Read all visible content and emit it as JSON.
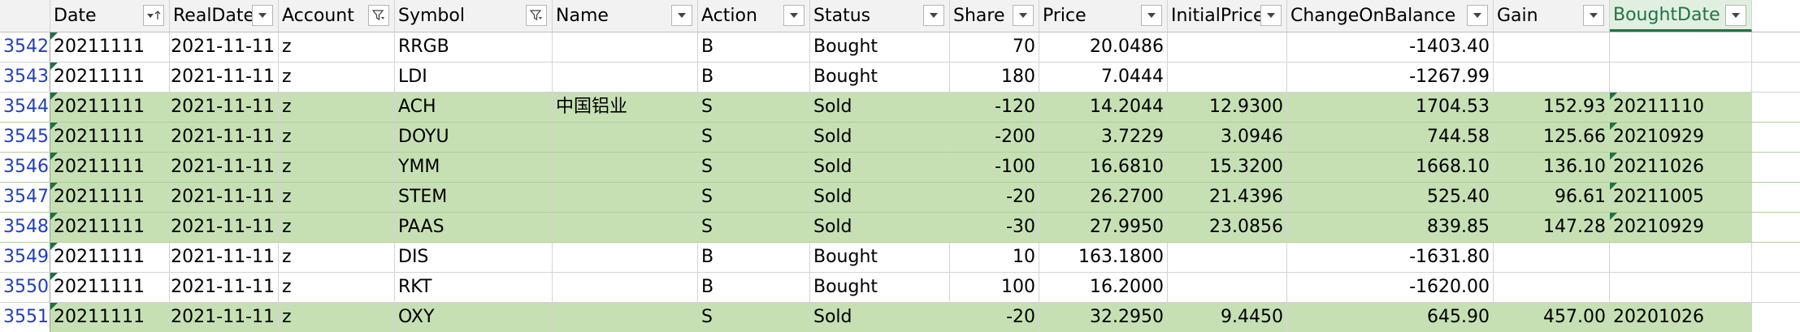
{
  "columns": [
    {
      "key": "rownum",
      "label": "",
      "width": 62,
      "filter": "none"
    },
    {
      "key": "date",
      "label": "Date",
      "width": 147,
      "filter": "sorted-asc"
    },
    {
      "key": "real_date",
      "label": "RealDate",
      "width": 134,
      "filter": "dropdown"
    },
    {
      "key": "account",
      "label": "Account",
      "width": 143,
      "filter": "filtered"
    },
    {
      "key": "symbol",
      "label": "Symbol",
      "width": 194,
      "filter": "filtered"
    },
    {
      "key": "name",
      "label": "Name",
      "width": 179,
      "filter": "dropdown"
    },
    {
      "key": "action",
      "label": "Action",
      "width": 138,
      "filter": "dropdown"
    },
    {
      "key": "status",
      "label": "Status",
      "width": 172,
      "filter": "dropdown"
    },
    {
      "key": "share",
      "label": "Share",
      "width": 110,
      "filter": "dropdown"
    },
    {
      "key": "price",
      "label": "Price",
      "width": 158,
      "filter": "dropdown"
    },
    {
      "key": "initial_price",
      "label": "InitialPrice",
      "width": 147,
      "filter": "dropdown"
    },
    {
      "key": "change_on_balance",
      "label": "ChangeOnBalance",
      "width": 254,
      "filter": "dropdown"
    },
    {
      "key": "gain",
      "label": "Gain",
      "width": 143,
      "filter": "dropdown"
    },
    {
      "key": "bought_date",
      "label": "BoughtDate",
      "width": 175,
      "filter": "dropdown"
    }
  ],
  "colors": {
    "sold_fill": "#c6e0b4",
    "row_number": "#1f3fbf",
    "marker": "#1e7145",
    "active_header": "#217346"
  },
  "rows": [
    {
      "rownum": "3542",
      "date": "20211111",
      "real_date": "2021-11-11",
      "account": "z",
      "symbol": "RRGB",
      "name": "",
      "action": "B",
      "status": "Bought",
      "share": "70",
      "price": "20.0486",
      "initial_price": "",
      "change_on_balance": "-1403.40",
      "gain": "",
      "bought_date": "",
      "highlight": false,
      "bought_marker": false
    },
    {
      "rownum": "3543",
      "date": "20211111",
      "real_date": "2021-11-11",
      "account": "z",
      "symbol": "LDI",
      "name": "",
      "action": "B",
      "status": "Bought",
      "share": "180",
      "price": "7.0444",
      "initial_price": "",
      "change_on_balance": "-1267.99",
      "gain": "",
      "bought_date": "",
      "highlight": false,
      "bought_marker": false
    },
    {
      "rownum": "3544",
      "date": "20211111",
      "real_date": "2021-11-11",
      "account": "z",
      "symbol": "ACH",
      "name": "中国铝业",
      "action": "S",
      "status": "Sold",
      "share": "-120",
      "price": "14.2044",
      "initial_price": "12.9300",
      "change_on_balance": "1704.53",
      "gain": "152.93",
      "bought_date": "20211110",
      "highlight": true,
      "bought_marker": true
    },
    {
      "rownum": "3545",
      "date": "20211111",
      "real_date": "2021-11-11",
      "account": "z",
      "symbol": "DOYU",
      "name": "",
      "action": "S",
      "status": "Sold",
      "share": "-200",
      "price": "3.7229",
      "initial_price": "3.0946",
      "change_on_balance": "744.58",
      "gain": "125.66",
      "bought_date": "20210929",
      "highlight": true,
      "bought_marker": true
    },
    {
      "rownum": "3546",
      "date": "20211111",
      "real_date": "2021-11-11",
      "account": "z",
      "symbol": "YMM",
      "name": "",
      "action": "S",
      "status": "Sold",
      "share": "-100",
      "price": "16.6810",
      "initial_price": "15.3200",
      "change_on_balance": "1668.10",
      "gain": "136.10",
      "bought_date": "20211026",
      "highlight": true,
      "bought_marker": true
    },
    {
      "rownum": "3547",
      "date": "20211111",
      "real_date": "2021-11-11",
      "account": "z",
      "symbol": "STEM",
      "name": "",
      "action": "S",
      "status": "Sold",
      "share": "-20",
      "price": "26.2700",
      "initial_price": "21.4396",
      "change_on_balance": "525.40",
      "gain": "96.61",
      "bought_date": "20211005",
      "highlight": true,
      "bought_marker": true
    },
    {
      "rownum": "3548",
      "date": "20211111",
      "real_date": "2021-11-11",
      "account": "z",
      "symbol": "PAAS",
      "name": "",
      "action": "S",
      "status": "Sold",
      "share": "-30",
      "price": "27.9950",
      "initial_price": "23.0856",
      "change_on_balance": "839.85",
      "gain": "147.28",
      "bought_date": "20210929",
      "highlight": true,
      "bought_marker": true
    },
    {
      "rownum": "3549",
      "date": "20211111",
      "real_date": "2021-11-11",
      "account": "z",
      "symbol": "DIS",
      "name": "",
      "action": "B",
      "status": "Bought",
      "share": "10",
      "price": "163.1800",
      "initial_price": "",
      "change_on_balance": "-1631.80",
      "gain": "",
      "bought_date": "",
      "highlight": false,
      "bought_marker": false
    },
    {
      "rownum": "3550",
      "date": "20211111",
      "real_date": "2021-11-11",
      "account": "z",
      "symbol": "RKT",
      "name": "",
      "action": "B",
      "status": "Bought",
      "share": "100",
      "price": "16.2000",
      "initial_price": "",
      "change_on_balance": "-1620.00",
      "gain": "",
      "bought_date": "",
      "highlight": false,
      "bought_marker": false
    },
    {
      "rownum": "3551",
      "date": "20211111",
      "real_date": "2021-11-11",
      "account": "z",
      "symbol": "OXY",
      "name": "",
      "action": "S",
      "status": "Sold",
      "share": "-20",
      "price": "32.2950",
      "initial_price": "9.4450",
      "change_on_balance": "645.90",
      "gain": "457.00",
      "bought_date": "20201026",
      "highlight": true,
      "bought_marker": false
    }
  ]
}
